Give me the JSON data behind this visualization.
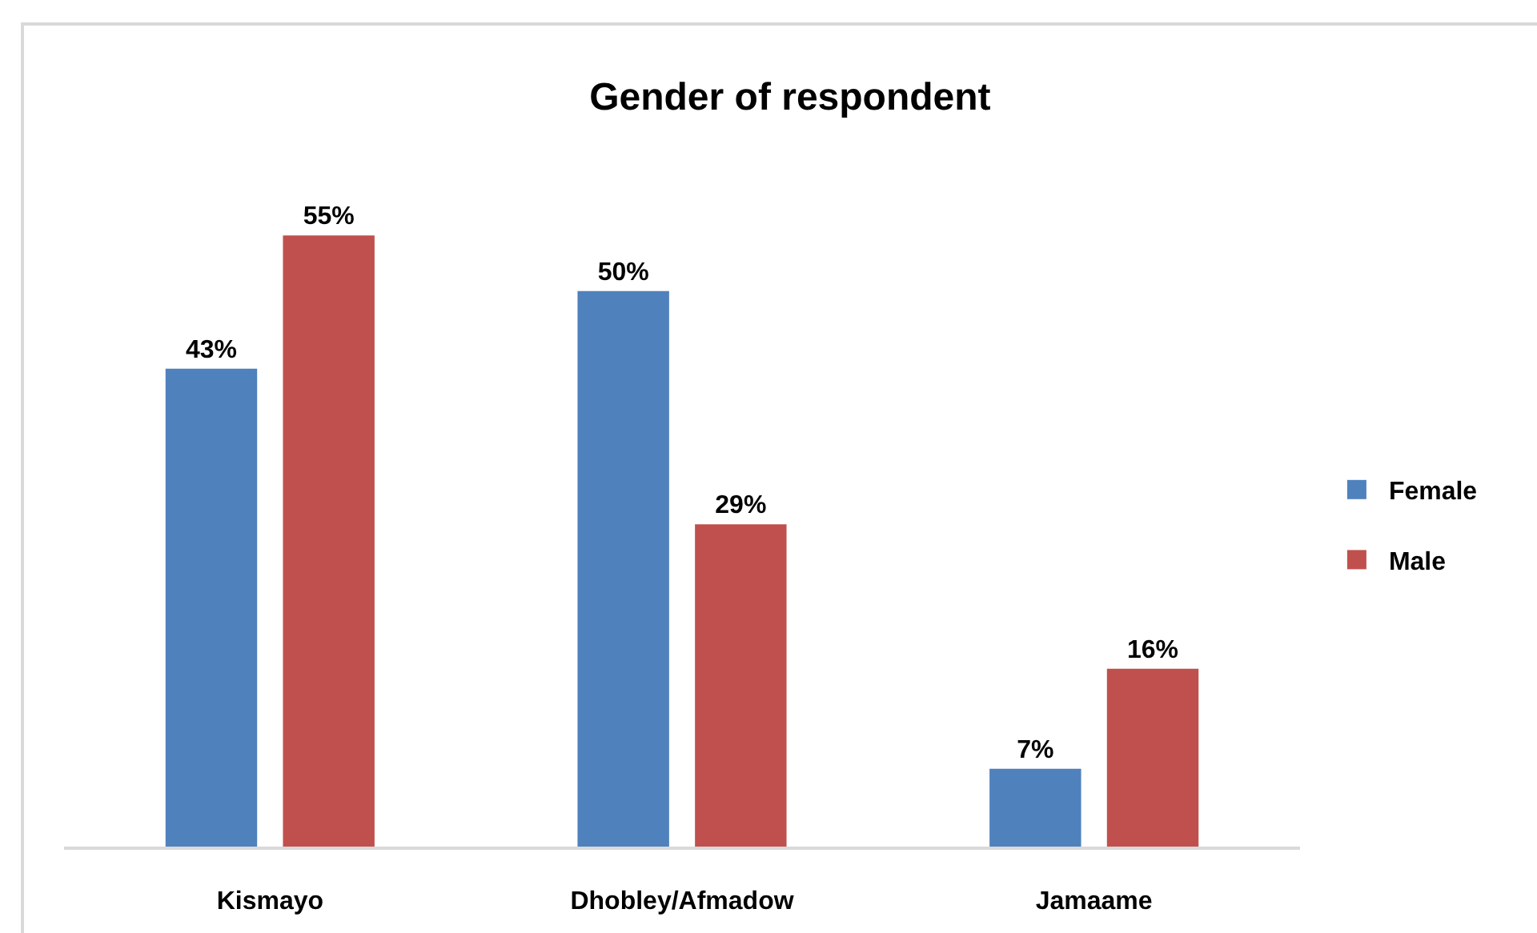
{
  "chart_data": {
    "type": "bar",
    "title": "Gender of respondent",
    "categories": [
      "Kismayo",
      "Dhobley/Afmadow",
      "Jamaame"
    ],
    "series": [
      {
        "name": "Female",
        "color": "#4f81bd",
        "values": [
          43,
          50,
          7
        ],
        "value_labels": [
          "43%",
          "50%",
          "7%"
        ]
      },
      {
        "name": "Male",
        "color": "#c0504d",
        "values": [
          55,
          29,
          16
        ],
        "value_labels": [
          "55%",
          "29%",
          "16%"
        ]
      }
    ],
    "legend": "right"
  }
}
